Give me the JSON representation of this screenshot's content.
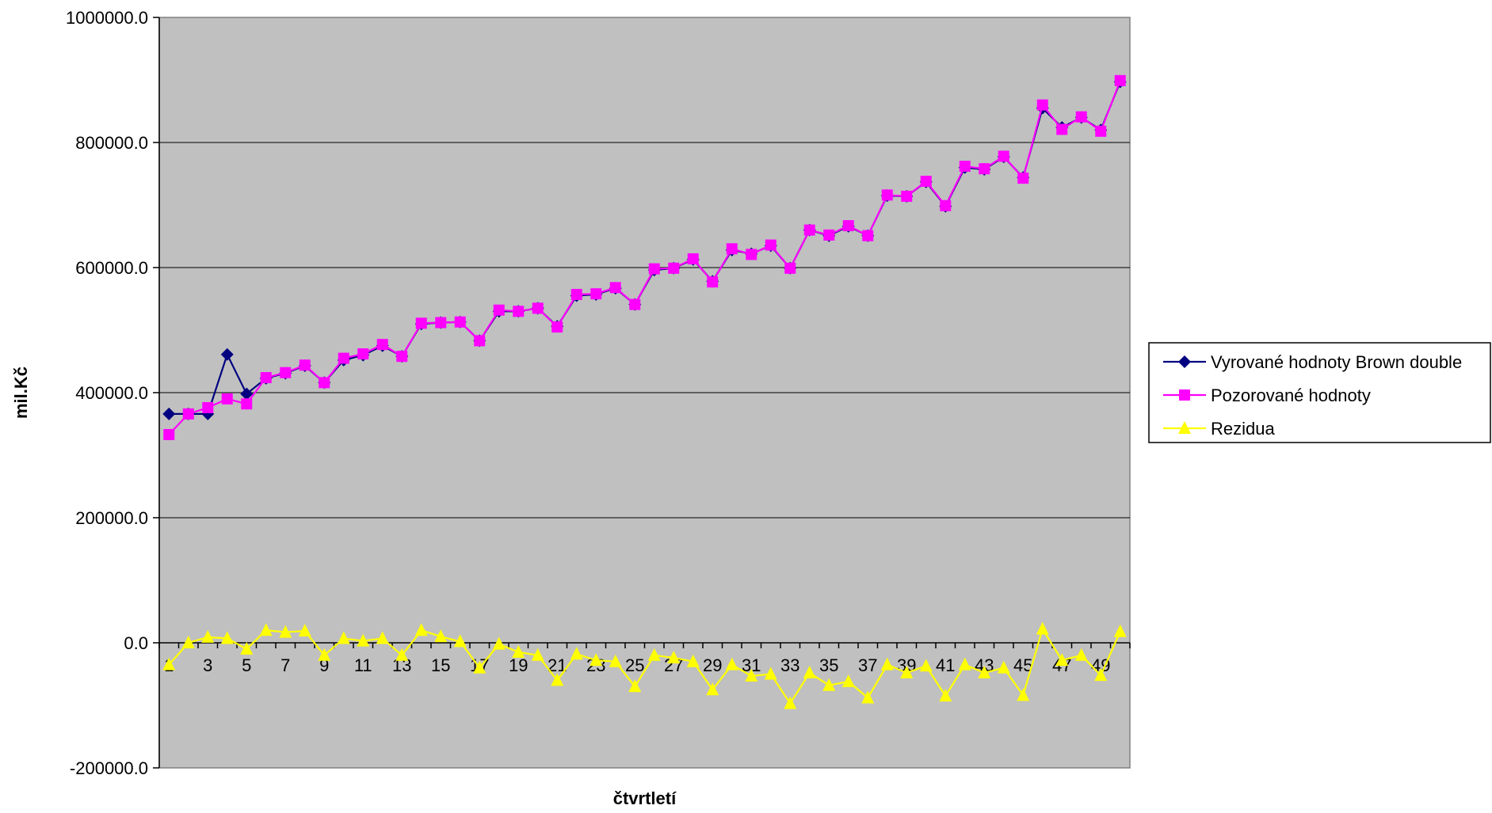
{
  "chart_data": {
    "type": "line",
    "title": "",
    "xlabel": "čtvrtletí",
    "ylabel": "mil.Kč",
    "ylim": [
      -200000,
      1000000
    ],
    "ytick_step": 200000,
    "ytick_labels": [
      "-200000.0",
      "0.0",
      "200000.0",
      "400000.0",
      "600000.0",
      "800000.0",
      "1000000.0"
    ],
    "x": [
      1,
      2,
      3,
      4,
      5,
      6,
      7,
      8,
      9,
      10,
      11,
      12,
      13,
      14,
      15,
      16,
      17,
      18,
      19,
      20,
      21,
      22,
      23,
      24,
      25,
      26,
      27,
      28,
      29,
      30,
      31,
      32,
      33,
      34,
      35,
      36,
      37,
      38,
      39,
      40,
      41,
      42,
      43,
      44,
      45,
      46,
      47,
      48,
      49,
      50
    ],
    "xtick_labels": [
      "1",
      "3",
      "5",
      "7",
      "9",
      "11",
      "13",
      "15",
      "17",
      "19",
      "21",
      "23",
      "25",
      "27",
      "29",
      "31",
      "33",
      "35",
      "37",
      "39",
      "41",
      "43",
      "45",
      "47",
      "49"
    ],
    "grid": true,
    "plot_background": "#c0c0c0",
    "legend_position": "right",
    "series": [
      {
        "name": "Vyrované hodnoty Brown double",
        "color": "#000080",
        "marker": "diamond",
        "values": [
          366000,
          366000,
          366000,
          461000,
          398000,
          423000,
          431000,
          443000,
          416000,
          452000,
          460000,
          475000,
          458000,
          510000,
          512000,
          513000,
          483000,
          530000,
          530000,
          535000,
          506000,
          555000,
          557000,
          567000,
          541000,
          596000,
          599000,
          613000,
          578000,
          628000,
          622000,
          635000,
          599000,
          660000,
          651000,
          666000,
          651000,
          715000,
          714000,
          737000,
          698000,
          760000,
          757000,
          777000,
          744000,
          855000,
          824000,
          840000,
          820000,
          897000
        ]
      },
      {
        "name": "Pozorované hodnoty",
        "color": "#ff00ff",
        "marker": "square",
        "values": [
          333000,
          366000,
          376000,
          390000,
          382000,
          424000,
          432000,
          444000,
          416000,
          455000,
          462000,
          477000,
          458000,
          511000,
          512000,
          513000,
          483000,
          532000,
          530000,
          535000,
          505000,
          557000,
          558000,
          568000,
          541000,
          598000,
          599000,
          614000,
          577000,
          630000,
          621000,
          636000,
          599000,
          660000,
          652000,
          667000,
          651000,
          716000,
          714000,
          738000,
          699000,
          762000,
          758000,
          778000,
          743000,
          860000,
          821000,
          841000,
          818000,
          899000
        ]
      },
      {
        "name": "Rezidua",
        "color": "#ffff00",
        "marker": "triangle",
        "values": [
          -35000,
          0,
          9000,
          7000,
          -10000,
          20000,
          17000,
          19000,
          -20000,
          7000,
          3000,
          7000,
          -20000,
          20000,
          10000,
          2000,
          -40000,
          -2000,
          -15000,
          -20000,
          -60000,
          -18000,
          -28000,
          -30000,
          -70000,
          -20000,
          -24000,
          -30000,
          -75000,
          -35000,
          -53000,
          -50000,
          -97000,
          -48000,
          -68000,
          -62000,
          -88000,
          -35000,
          -48000,
          -37000,
          -85000,
          -35000,
          -48000,
          -40000,
          -84000,
          22000,
          -28000,
          -20000,
          -52000,
          18000
        ]
      }
    ]
  }
}
